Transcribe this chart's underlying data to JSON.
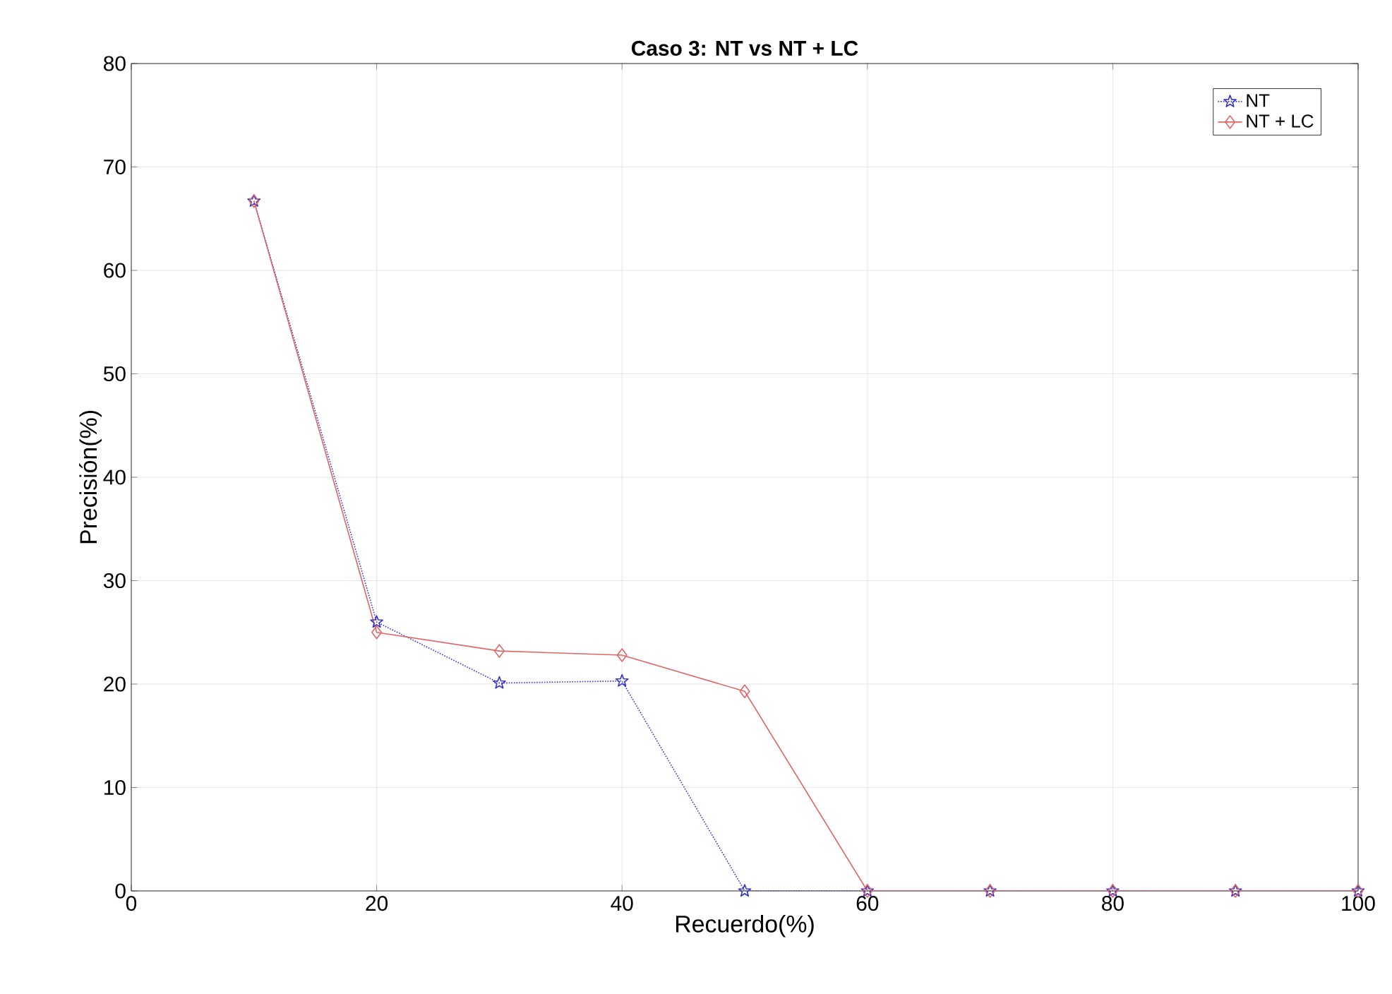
{
  "chart_data": {
    "type": "line",
    "title": "Caso 3: NT vs NT + LC",
    "xlabel": "Recuerdo(%)",
    "ylabel": "Precisión(%)",
    "x": [
      10,
      20,
      30,
      40,
      50,
      60,
      70,
      80,
      90,
      100
    ],
    "series": [
      {
        "name": "NT",
        "color": "#3333cc",
        "marker": "star",
        "line_style": "dotted",
        "values": [
          66.7,
          26,
          20.1,
          20.3,
          0,
          0,
          0,
          0,
          0,
          0
        ]
      },
      {
        "name": "NT + LC",
        "color": "#e06666",
        "marker": "diamond",
        "line_style": "solid",
        "values": [
          66.7,
          25,
          23.2,
          22.8,
          19.3,
          0,
          0,
          0,
          0,
          0
        ]
      }
    ],
    "xlim": [
      0,
      100
    ],
    "ylim": [
      0,
      80
    ],
    "xticks": [
      0,
      20,
      40,
      60,
      80,
      100
    ],
    "yticks": [
      0,
      10,
      20,
      30,
      40,
      50,
      60,
      70,
      80
    ],
    "grid": true,
    "legend": "top right"
  }
}
